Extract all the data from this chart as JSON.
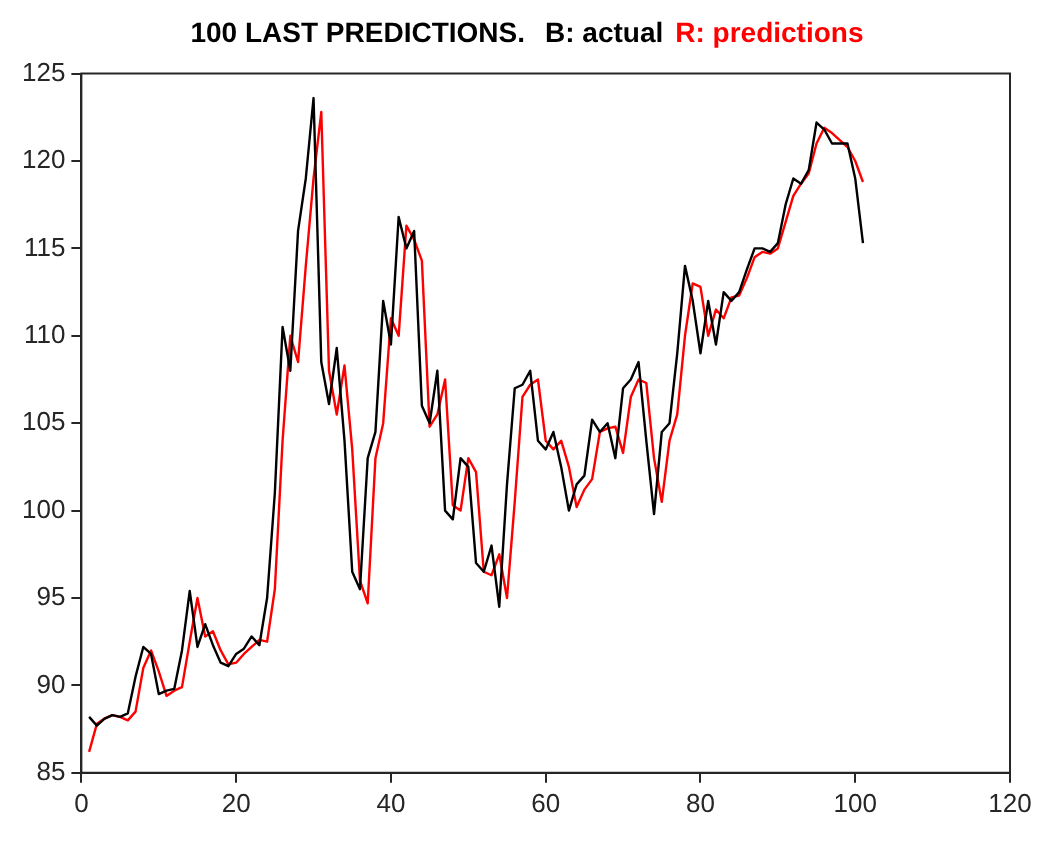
{
  "chart_data": {
    "type": "line",
    "title": "100 LAST PREDICTIONS.",
    "legend": "top",
    "grid": false,
    "marker": "none",
    "line_style": "solid",
    "x": [
      1,
      2,
      3,
      4,
      5,
      6,
      7,
      8,
      9,
      10,
      11,
      12,
      13,
      14,
      15,
      16,
      17,
      18,
      19,
      20,
      21,
      22,
      23,
      24,
      25,
      26,
      27,
      28,
      29,
      30,
      31,
      32,
      33,
      34,
      35,
      36,
      37,
      38,
      39,
      40,
      41,
      42,
      43,
      44,
      45,
      46,
      47,
      48,
      49,
      50,
      51,
      52,
      53,
      54,
      55,
      56,
      57,
      58,
      59,
      60,
      61,
      62,
      63,
      64,
      65,
      66,
      67,
      68,
      69,
      70,
      71,
      72,
      73,
      74,
      75,
      76,
      77,
      78,
      79,
      80,
      81,
      82,
      83,
      84,
      85,
      86,
      87,
      88,
      89,
      90,
      91,
      92,
      93,
      94,
      95,
      96,
      97,
      98,
      99,
      100,
      101
    ],
    "xlim": [
      0,
      120
    ],
    "xticks": [
      0,
      20,
      40,
      60,
      80,
      100,
      120
    ],
    "ylim": [
      85,
      125
    ],
    "yticks": [
      85,
      90,
      95,
      100,
      105,
      110,
      115,
      120,
      125
    ],
    "series": [
      {
        "name": "B: actual",
        "color": "#000000",
        "values": [
          88.2,
          87.7,
          88.1,
          88.3,
          88.2,
          88.4,
          90.5,
          92.2,
          91.8,
          89.5,
          89.7,
          89.8,
          92,
          95.4,
          92.2,
          93.5,
          92.3,
          91.3,
          91.1,
          91.8,
          92.1,
          92.8,
          92.3,
          95,
          101,
          110.5,
          108,
          116,
          119,
          123.6,
          108.5,
          106.1,
          109.3,
          104,
          96.5,
          95.5,
          103,
          104.5,
          112,
          109.5,
          116.8,
          115,
          116,
          106,
          105,
          108,
          100,
          99.5,
          103,
          102.5,
          97,
          96.5,
          98,
          94.5,
          101.5,
          107,
          107.2,
          108,
          104,
          103.5,
          104.5,
          102.5,
          100,
          101.5,
          102,
          105.2,
          104.5,
          105,
          103,
          107,
          107.5,
          108.5,
          104,
          99.8,
          104.5,
          105,
          109,
          114,
          112,
          109,
          112,
          109.5,
          112.5,
          112,
          112.5,
          113.8,
          115,
          115,
          114.8,
          115.3,
          117.5,
          119,
          118.7,
          119.5,
          122.2,
          121.8,
          121,
          121,
          121,
          119,
          115.3
        ]
      },
      {
        "name": "R: predictions",
        "color": "#ff0000",
        "values": [
          86.2,
          87.8,
          88.1,
          88.3,
          88.2,
          88,
          88.5,
          91,
          92,
          90.8,
          89.4,
          89.7,
          89.9,
          92.5,
          95,
          92.8,
          93.1,
          92,
          91.2,
          91.3,
          91.8,
          92.2,
          92.6,
          92.5,
          95.5,
          104,
          110,
          108.5,
          114,
          119,
          122.8,
          108,
          105.5,
          108.3,
          103.5,
          96,
          94.7,
          103,
          105,
          111,
          110,
          116.3,
          115.5,
          114.3,
          104.8,
          105.5,
          107.5,
          100.3,
          100,
          103,
          102.2,
          96.5,
          96.3,
          97.5,
          95,
          100.5,
          106.5,
          107.2,
          107.5,
          104,
          103.5,
          104,
          102.5,
          100.2,
          101.2,
          101.8,
          104.5,
          104.7,
          104.8,
          103.3,
          106.5,
          107.5,
          107.3,
          103,
          100.5,
          104,
          105.5,
          110,
          113,
          112.8,
          110,
          111.5,
          111,
          112.2,
          112.3,
          113.3,
          114.5,
          114.8,
          114.7,
          115,
          116.5,
          118,
          118.7,
          119.3,
          121,
          121.9,
          121.6,
          121.2,
          120.8,
          120,
          118.8
        ]
      }
    ]
  }
}
